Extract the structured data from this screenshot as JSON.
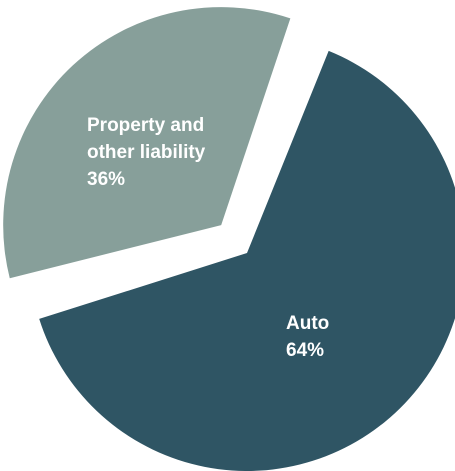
{
  "chart_data": {
    "type": "pie",
    "slices": [
      {
        "name": "Auto",
        "value": 64,
        "value_label": "64%",
        "label_lines": [
          "Auto",
          "64%"
        ],
        "color": "#2f5564",
        "exploded": false
      },
      {
        "name": "Property and other liability",
        "value": 36,
        "value_label": "36%",
        "label_lines": [
          "Property and",
          "other liability",
          "36%"
        ],
        "color": "#879f9a",
        "exploded": true
      }
    ],
    "legend": "none"
  }
}
